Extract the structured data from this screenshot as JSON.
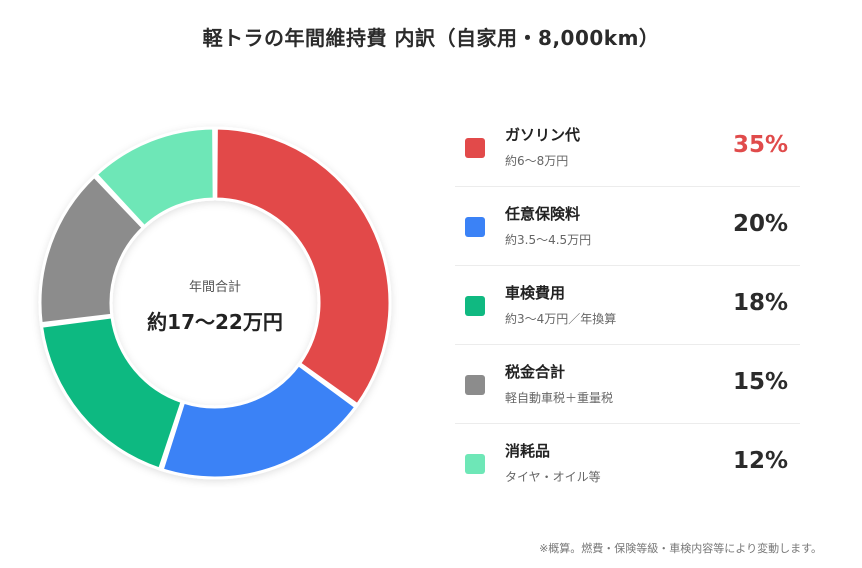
{
  "chart_data": {
    "type": "pie",
    "title": "軽トラの年間維持費 内訳（自家用・8,000km）",
    "center": {
      "label": "年間合計",
      "value": "約17～22万円"
    },
    "categories": [
      "ガソリン代",
      "任意保険料",
      "車検費用",
      "税金合計",
      "消耗品"
    ],
    "values": [
      35,
      20,
      18,
      15,
      12
    ],
    "percent_labels": [
      "35%",
      "20%",
      "18%",
      "15%",
      "12%"
    ],
    "descriptions": [
      "約6～8万円",
      "約3.5～4.5万円",
      "約3～4万円／年換算",
      "軽自動車税＋重量税",
      "タイヤ・オイル等"
    ],
    "colors": [
      "#e24a4a",
      "#3b82f6",
      "#10b981",
      "#8c8c8c",
      "#6ee7b7"
    ],
    "highlight_color": "#e04b4b",
    "footnote": "※概算。燃費・保険等級・車検内容等により変動します。"
  }
}
